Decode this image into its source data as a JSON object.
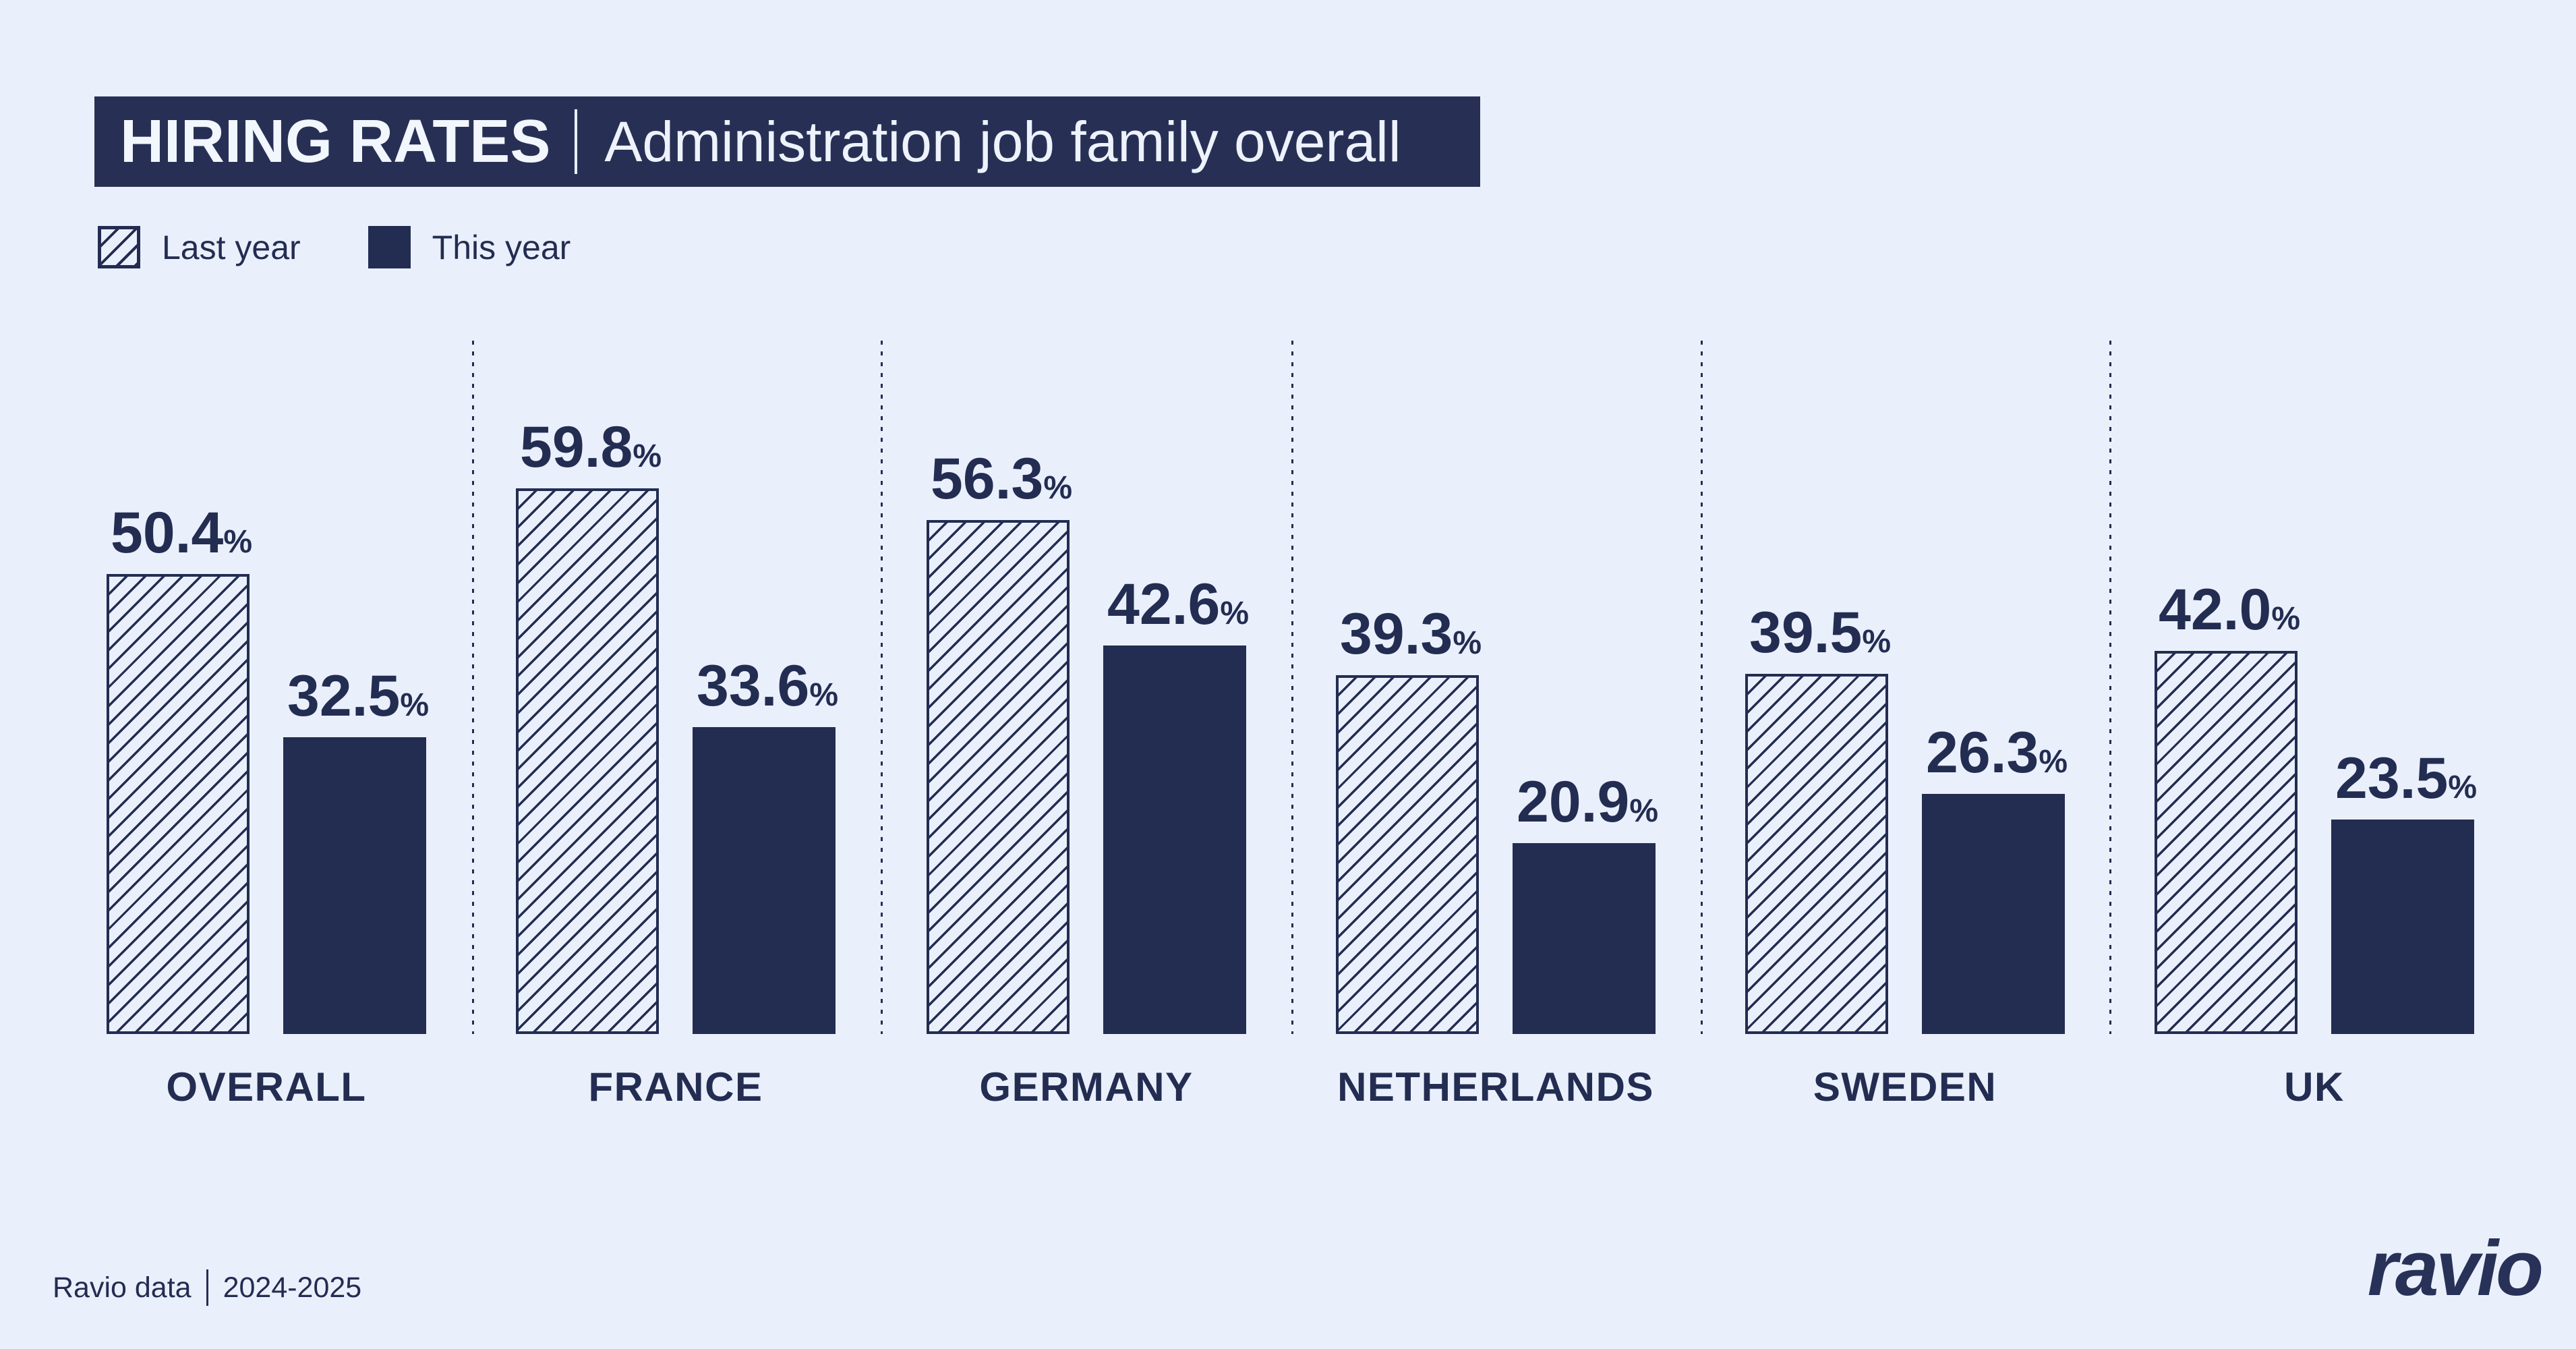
{
  "header": {
    "title": "HIRING RATES",
    "subtitle": "Administration job family overall"
  },
  "legend": {
    "items": [
      {
        "label": "Last year",
        "style": "hatched"
      },
      {
        "label": "This year",
        "style": "solid"
      }
    ]
  },
  "chart_data": {
    "type": "bar",
    "title": "HIRING RATES",
    "subtitle": "Administration job family overall",
    "categories": [
      "OVERALL",
      "FRANCE",
      "GERMANY",
      "NETHERLANDS",
      "SWEDEN",
      "UK"
    ],
    "series": [
      {
        "name": "Last year",
        "style": "hatched",
        "values": [
          50.4,
          59.8,
          56.3,
          39.3,
          39.5,
          42.0
        ]
      },
      {
        "name": "This year",
        "style": "solid",
        "values": [
          32.5,
          33.6,
          42.6,
          20.9,
          26.3,
          23.5
        ]
      }
    ],
    "unit": "%",
    "value_labels": "shown above each bar, one decimal place",
    "axes": "none (no gridlines, no y-axis); dotted vertical separators between category groups",
    "legend_position": "top-left",
    "ylim": [
      0,
      65
    ]
  },
  "footer": {
    "source": "Ravio data",
    "period": "2024-2025"
  },
  "logo_text": "ravio",
  "colors": {
    "background": "#EAF0FB",
    "navy": "#232D52",
    "title_bar": "#273054",
    "title_text": "#F2F6FD"
  }
}
